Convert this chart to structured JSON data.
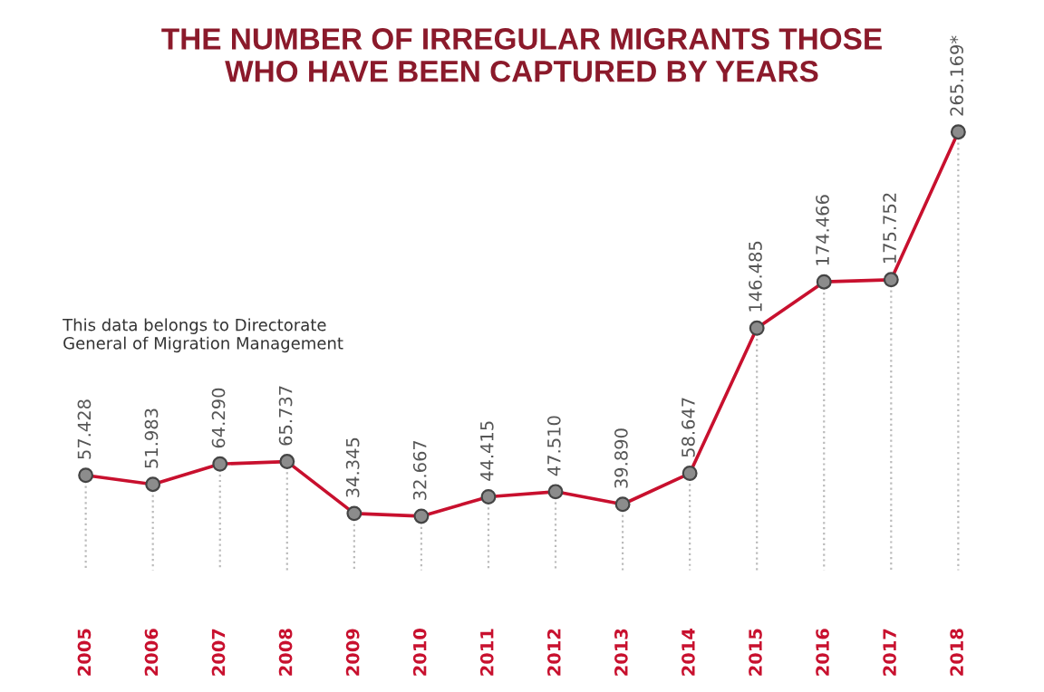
{
  "chart_data": {
    "type": "line",
    "title": "THE NUMBER OF IRREGULAR MIGRANTS THOSE\nWHO HAVE BEEN CAPTURED BY YEARS",
    "categories": [
      "2005",
      "2006",
      "2007",
      "2008",
      "2009",
      "2010",
      "2011",
      "2012",
      "2013",
      "2014",
      "2015",
      "2016",
      "2017",
      "2018"
    ],
    "series": [
      {
        "color": "#c8102e",
        "values": [
          57428,
          51983,
          64290,
          65737,
          34345,
          32667,
          44415,
          47510,
          39890,
          58647,
          146485,
          174466,
          175752,
          265169
        ],
        "value_labels": [
          "57.428",
          "51.983",
          "64.290",
          "65.737",
          "34.345",
          "32.667",
          "44.415",
          "47.510",
          "39.890",
          "58.647",
          "146.485",
          "174.466",
          "175.752",
          "265.169*"
        ]
      }
    ],
    "marker": "circle",
    "grid": "x",
    "annotations": [
      "This data belongs to Directorate\nGeneral of Migration Management"
    ]
  }
}
